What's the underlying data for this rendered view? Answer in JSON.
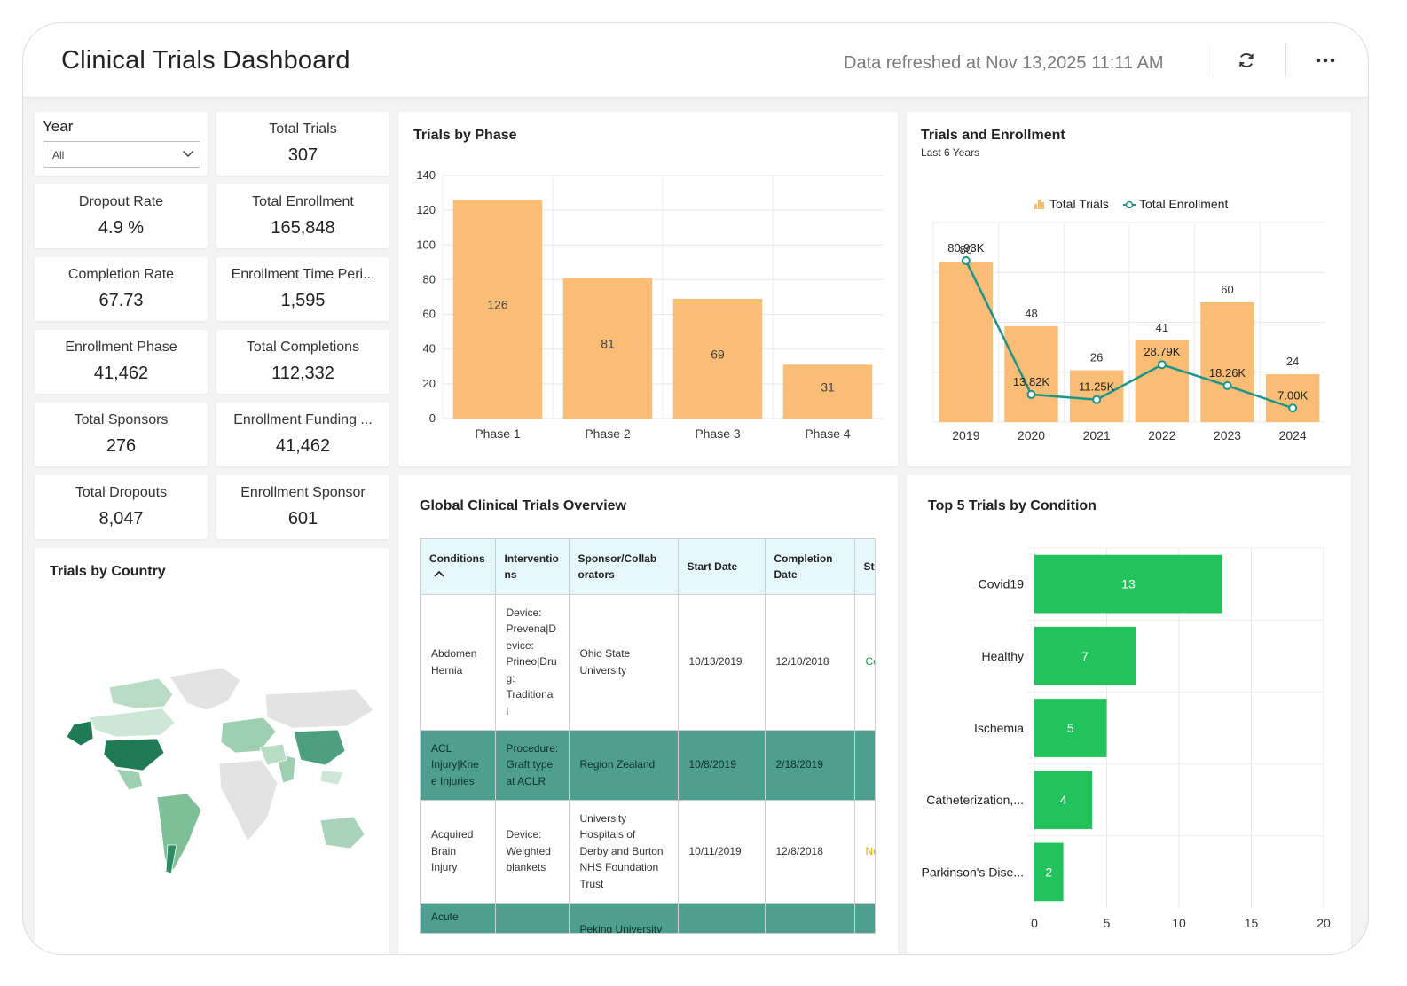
{
  "header": {
    "title": "Clinical Trials Dashboard",
    "refreshed": "Data refreshed at Nov 13,2025 11:11 AM",
    "refresh_icon": "refresh-icon",
    "more_icon": "more-horizontal-icon"
  },
  "filter": {
    "label": "Year",
    "value": "All"
  },
  "kpis": [
    {
      "label": "Total Trials",
      "value": "307"
    },
    {
      "label": "Dropout Rate",
      "value": "4.9 %"
    },
    {
      "label": "Total Enrollment",
      "value": "165,848"
    },
    {
      "label": "Completion Rate",
      "value": "67.73"
    },
    {
      "label": "Enrollment Time Peri...",
      "value": "1,595"
    },
    {
      "label": "Enrollment Phase",
      "value": "41,462"
    },
    {
      "label": "Total Completions",
      "value": "112,332"
    },
    {
      "label": "Total Sponsors",
      "value": "276"
    },
    {
      "label": "Enrollment Funding ...",
      "value": "41,462"
    },
    {
      "label": "Total Dropouts",
      "value": "8,047"
    },
    {
      "label": "Enrollment Sponsor",
      "value": "601"
    }
  ],
  "map": {
    "title": "Trials by Country"
  },
  "table": {
    "title": "Global Clinical Trials Overview",
    "columns": [
      "Conditions",
      "Interventio ns",
      "Sponsor/Collab orators",
      "Start Date",
      "Completion Date",
      "St"
    ],
    "rows": [
      {
        "condition": "Abdomen Hernia",
        "intervention": "Device: Prevena|D evice: Prineo|Dru g: Traditiona l",
        "sponsor": "Ohio State University",
        "start": "10/13/2019",
        "completion": "12/10/2018",
        "status": "Co"
      },
      {
        "condition": "ACL Injury|Kne e Injuries",
        "intervention": "Procedure: Graft type at ACLR",
        "sponsor": "Region Zealand",
        "start": "10/8/2019",
        "completion": "2/18/2019",
        "status": ""
      },
      {
        "condition": "Acquired Brain Injury",
        "intervention": "Device: Weighted blankets",
        "sponsor": "University Hospitals of Derby and Burton NHS Foundation Trust",
        "start": "10/11/2019",
        "completion": "12/8/2018",
        "status": "Nc re"
      },
      {
        "condition": "Acute",
        "intervention": "",
        "sponsor": "Peking University",
        "start": "",
        "completion": "",
        "status": ""
      }
    ]
  },
  "chart_data": [
    {
      "type": "bar",
      "title": "Trials by Phase",
      "categories": [
        "Phase 1",
        "Phase 2",
        "Phase 3",
        "Phase 4"
      ],
      "values": [
        126,
        81,
        69,
        31
      ],
      "ylim": [
        0,
        140
      ],
      "yticks": [
        0,
        20,
        40,
        60,
        80,
        100,
        120,
        140
      ],
      "grid": true,
      "color": "#f9bd76"
    },
    {
      "type": "bar",
      "title": "Trials and Enrollment",
      "subtitle": "Last 6 Years",
      "categories": [
        "2019",
        "2020",
        "2021",
        "2022",
        "2023",
        "2024"
      ],
      "series": [
        {
          "name": "Total Trials",
          "type": "bar",
          "values": [
            80,
            48,
            26,
            41,
            60,
            24
          ],
          "labels": [
            "80",
            "48",
            "26",
            "41",
            "60",
            "24"
          ],
          "color": "#f9bd76"
        },
        {
          "name": "Total Enrollment",
          "type": "line",
          "values": [
            80930,
            13820,
            11250,
            28790,
            18260,
            7000
          ],
          "labels": [
            "80.93K",
            "13.82K",
            "11.25K",
            "28.79K",
            "18.26K",
            "7.00K"
          ],
          "color": "#1e9488"
        }
      ],
      "legend": "top-center",
      "grid": true
    },
    {
      "type": "bar",
      "orientation": "horizontal",
      "title": "Top 5 Trials by Condition",
      "categories": [
        "Covid19",
        "Healthy",
        "Ischemia",
        "Catheterization,...",
        "Parkinson's Dise..."
      ],
      "values": [
        13,
        7,
        5,
        4,
        2
      ],
      "xlim": [
        0,
        20
      ],
      "xticks": [
        0,
        5,
        10,
        15,
        20
      ],
      "grid": true,
      "color": "#22c35a"
    }
  ]
}
